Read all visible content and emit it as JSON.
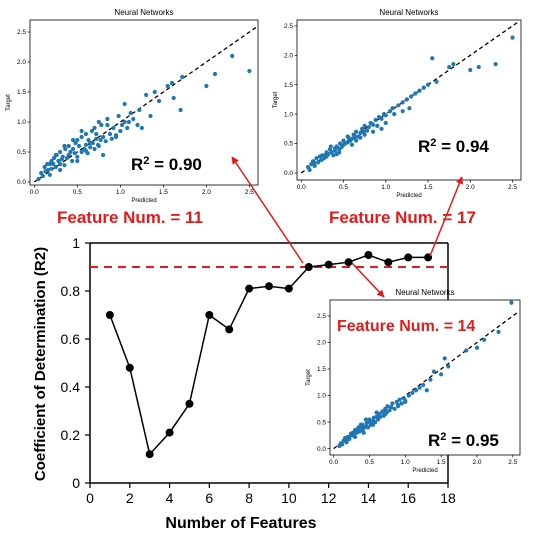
{
  "colors": {
    "point": "#1f77b4",
    "main_line": "#000000",
    "threshold": "#e31b1b",
    "annotation": "#e31b1b",
    "identity_line": "#000000"
  },
  "chart_data": [
    {
      "id": "main",
      "type": "line",
      "title": "",
      "xlabel": "Number of Features",
      "ylabel": "Coefficient of Determination (R2)",
      "xlim": [
        0,
        18
      ],
      "ylim": [
        0,
        1
      ],
      "xticks": [
        0,
        2,
        4,
        6,
        8,
        10,
        12,
        14,
        16,
        18
      ],
      "yticks": [
        0,
        0.2,
        0.4,
        0.6,
        0.8,
        1
      ],
      "ytick_labels": [
        "0",
        "0.2",
        "0.4",
        "0.6",
        "0.8",
        "1"
      ],
      "grid": false,
      "series": [
        {
          "x": [
            1,
            2,
            3,
            4,
            5,
            6,
            7,
            8,
            9,
            10,
            11,
            12,
            13,
            14,
            15,
            16,
            17
          ],
          "values": [
            0.7,
            0.48,
            0.12,
            0.21,
            0.33,
            0.7,
            0.64,
            0.81,
            0.82,
            0.81,
            0.9,
            0.91,
            0.92,
            0.95,
            0.92,
            0.94,
            0.94
          ]
        }
      ],
      "threshold": {
        "y": 0.9,
        "style": "dashed"
      }
    },
    {
      "id": "inset-11",
      "type": "scatter",
      "title": "Neural Networks",
      "xlabel": "Predicted",
      "ylabel": "Target",
      "xlim": [
        -0.05,
        2.6
      ],
      "ylim": [
        -0.05,
        2.7
      ],
      "xticks": [
        0.0,
        0.5,
        1.0,
        1.5,
        2.0,
        2.5
      ],
      "xtick_labels": [
        "0.0",
        "0.5",
        "1.0",
        "1.5",
        "2.0",
        "2.5"
      ],
      "yticks": [
        0.0,
        0.5,
        1.0,
        1.5,
        2.0,
        2.5
      ],
      "ytick_labels": [
        "0.0",
        "0.5",
        "1.0",
        "1.5",
        "2.0",
        "2.5"
      ],
      "annotation_base": "R",
      "annotation_sup": "2",
      "annotation_value": " = 0.90",
      "feature_label": "Feature Num. = 11",
      "points": {
        "x": [
          0.05,
          0.08,
          0.1,
          0.12,
          0.13,
          0.15,
          0.16,
          0.18,
          0.2,
          0.2,
          0.22,
          0.23,
          0.25,
          0.26,
          0.28,
          0.3,
          0.3,
          0.32,
          0.33,
          0.35,
          0.36,
          0.38,
          0.4,
          0.4,
          0.42,
          0.44,
          0.45,
          0.47,
          0.48,
          0.5,
          0.5,
          0.52,
          0.55,
          0.55,
          0.58,
          0.6,
          0.6,
          0.62,
          0.63,
          0.65,
          0.67,
          0.68,
          0.7,
          0.7,
          0.72,
          0.74,
          0.75,
          0.77,
          0.78,
          0.8,
          0.8,
          0.83,
          0.85,
          0.88,
          0.9,
          0.92,
          0.95,
          0.98,
          1.0,
          1.02,
          1.05,
          1.08,
          1.1,
          1.12,
          1.15,
          1.2,
          1.22,
          1.25,
          1.3,
          1.35,
          1.4,
          1.45,
          1.55,
          1.6,
          1.62,
          1.7,
          1.72,
          2.0,
          2.1,
          2.3,
          2.5,
          0.35,
          0.45,
          0.55,
          0.65,
          0.72,
          0.85,
          0.95,
          1.05,
          0.25,
          0.18,
          0.5,
          0.6,
          0.75,
          0.3
        ],
        "y": [
          0.05,
          0.15,
          0.1,
          0.25,
          0.18,
          0.3,
          0.2,
          0.12,
          0.35,
          0.22,
          0.3,
          0.4,
          0.25,
          0.45,
          0.35,
          0.3,
          0.5,
          0.38,
          0.42,
          0.28,
          0.55,
          0.4,
          0.45,
          0.6,
          0.5,
          0.35,
          0.55,
          0.48,
          0.65,
          0.42,
          0.7,
          0.6,
          0.5,
          0.75,
          0.55,
          0.62,
          0.8,
          0.48,
          0.7,
          0.58,
          0.85,
          0.65,
          0.9,
          0.55,
          0.72,
          0.62,
          1.0,
          0.7,
          0.95,
          0.75,
          0.45,
          0.68,
          1.05,
          0.8,
          0.72,
          0.9,
          0.75,
          1.1,
          0.85,
          0.95,
          1.3,
          0.9,
          1.0,
          1.15,
          1.05,
          0.95,
          1.2,
          0.9,
          1.45,
          1.1,
          1.5,
          1.35,
          1.6,
          1.65,
          1.4,
          1.2,
          1.75,
          1.6,
          1.8,
          2.1,
          1.85,
          0.6,
          0.7,
          0.85,
          0.65,
          0.8,
          0.95,
          0.78,
          1.0,
          0.45,
          0.3,
          0.35,
          0.52,
          0.6,
          0.2
        ]
      }
    },
    {
      "id": "inset-17",
      "type": "scatter",
      "title": "Neural Networks",
      "xlabel": "Predicted",
      "ylabel": "Target",
      "xlim": [
        -0.05,
        2.6
      ],
      "ylim": [
        -0.12,
        2.6
      ],
      "xticks": [
        0.0,
        0.5,
        1.0,
        1.5,
        2.0,
        2.5
      ],
      "xtick_labels": [
        "0.0",
        "0.5",
        "1.0",
        "1.5",
        "2.0",
        "2.5"
      ],
      "yticks": [
        0.0,
        0.5,
        1.0,
        1.5,
        2.0,
        2.5
      ],
      "ytick_labels": [
        "0.0",
        "0.5",
        "1.0",
        "1.5",
        "2.0",
        "2.5"
      ],
      "annotation_base": "R",
      "annotation_sup": "2",
      "annotation_value": " = 0.94",
      "feature_label": "Feature Num. = 17",
      "points": {
        "x": [
          0.08,
          0.1,
          0.12,
          0.14,
          0.16,
          0.18,
          0.2,
          0.22,
          0.24,
          0.25,
          0.27,
          0.3,
          0.3,
          0.32,
          0.34,
          0.36,
          0.38,
          0.4,
          0.4,
          0.42,
          0.45,
          0.46,
          0.48,
          0.5,
          0.5,
          0.52,
          0.55,
          0.56,
          0.58,
          0.6,
          0.62,
          0.64,
          0.65,
          0.68,
          0.7,
          0.72,
          0.74,
          0.75,
          0.78,
          0.8,
          0.82,
          0.85,
          0.88,
          0.9,
          0.92,
          0.95,
          0.98,
          1.0,
          1.05,
          1.08,
          1.1,
          1.15,
          1.2,
          1.25,
          1.28,
          1.3,
          1.35,
          1.4,
          1.45,
          1.5,
          1.55,
          1.6,
          1.75,
          1.8,
          2.0,
          2.1,
          2.3,
          2.5,
          0.35,
          0.45,
          0.55,
          0.65,
          0.75,
          0.85,
          0.95,
          0.28,
          0.6,
          0.7,
          1.0,
          1.2,
          0.15,
          0.42
        ],
        "y": [
          0.1,
          0.05,
          0.15,
          0.2,
          0.12,
          0.25,
          0.18,
          0.28,
          0.22,
          0.3,
          0.25,
          0.35,
          0.28,
          0.32,
          0.4,
          0.35,
          0.3,
          0.42,
          0.38,
          0.45,
          0.4,
          0.5,
          0.44,
          0.48,
          0.55,
          0.5,
          0.52,
          0.6,
          0.55,
          0.58,
          0.65,
          0.6,
          0.7,
          0.62,
          0.68,
          0.75,
          0.7,
          0.8,
          0.72,
          0.78,
          0.85,
          0.82,
          0.9,
          0.8,
          0.95,
          0.92,
          1.0,
          0.98,
          1.05,
          1.1,
          1.0,
          1.15,
          1.2,
          1.25,
          1.1,
          1.3,
          1.35,
          1.4,
          1.45,
          1.5,
          1.95,
          1.55,
          1.8,
          1.85,
          1.75,
          1.8,
          1.85,
          2.3,
          0.45,
          0.35,
          0.62,
          0.55,
          0.65,
          0.7,
          0.75,
          0.3,
          0.48,
          0.6,
          0.85,
          1.05,
          0.18,
          0.32
        ]
      }
    },
    {
      "id": "inset-14",
      "type": "scatter",
      "title": "Neural Networks",
      "xlabel": "Predicted",
      "ylabel": "Target",
      "xlim": [
        -0.05,
        2.6
      ],
      "ylim": [
        -0.12,
        2.8
      ],
      "xticks": [
        0.0,
        0.5,
        1.0,
        1.5,
        2.0,
        2.5
      ],
      "xtick_labels": [
        "0.0",
        "0.5",
        "1.0",
        "1.5",
        "2.0",
        "2.5"
      ],
      "yticks": [
        0.0,
        0.5,
        1.0,
        1.5,
        2.0,
        2.5
      ],
      "ytick_labels": [
        "0.0",
        "0.5",
        "1.0",
        "1.5",
        "2.0",
        "2.5"
      ],
      "annotation_base": "R",
      "annotation_sup": "2",
      "annotation_value": " = 0.95",
      "feature_label": "Feature Num. = 14",
      "points": {
        "x": [
          0.08,
          0.1,
          0.12,
          0.14,
          0.16,
          0.18,
          0.2,
          0.22,
          0.24,
          0.25,
          0.27,
          0.3,
          0.3,
          0.32,
          0.34,
          0.36,
          0.38,
          0.4,
          0.4,
          0.42,
          0.45,
          0.46,
          0.48,
          0.5,
          0.5,
          0.52,
          0.55,
          0.56,
          0.58,
          0.6,
          0.62,
          0.64,
          0.65,
          0.68,
          0.7,
          0.72,
          0.74,
          0.75,
          0.78,
          0.8,
          0.82,
          0.85,
          0.88,
          0.9,
          0.92,
          0.95,
          0.98,
          1.0,
          1.05,
          1.1,
          1.15,
          1.2,
          1.25,
          1.3,
          1.35,
          1.4,
          1.5,
          1.55,
          1.6,
          1.85,
          2.0,
          2.1,
          2.3,
          2.48,
          0.35,
          0.45,
          0.55,
          0.65,
          0.28,
          0.6,
          0.72,
          0.9,
          0.18,
          0.42,
          1.0,
          0.38
        ],
        "y": [
          0.05,
          0.1,
          0.08,
          0.15,
          0.2,
          0.12,
          0.22,
          0.18,
          0.28,
          0.25,
          0.3,
          0.22,
          0.35,
          0.3,
          0.38,
          0.32,
          0.4,
          0.35,
          0.45,
          0.38,
          0.42,
          0.48,
          0.4,
          0.5,
          0.55,
          0.45,
          0.52,
          0.58,
          0.5,
          0.6,
          0.55,
          0.65,
          0.6,
          0.7,
          0.62,
          0.75,
          0.68,
          0.8,
          0.72,
          0.78,
          0.85,
          0.75,
          0.88,
          0.82,
          0.92,
          0.85,
          0.95,
          0.88,
          1.0,
          1.05,
          1.1,
          1.15,
          1.2,
          1.1,
          1.3,
          1.45,
          1.4,
          1.7,
          1.55,
          1.85,
          1.9,
          2.05,
          2.2,
          2.75,
          0.4,
          0.55,
          0.45,
          0.6,
          0.25,
          0.68,
          0.65,
          0.8,
          0.15,
          0.3,
          0.9,
          0.45
        ]
      }
    }
  ]
}
